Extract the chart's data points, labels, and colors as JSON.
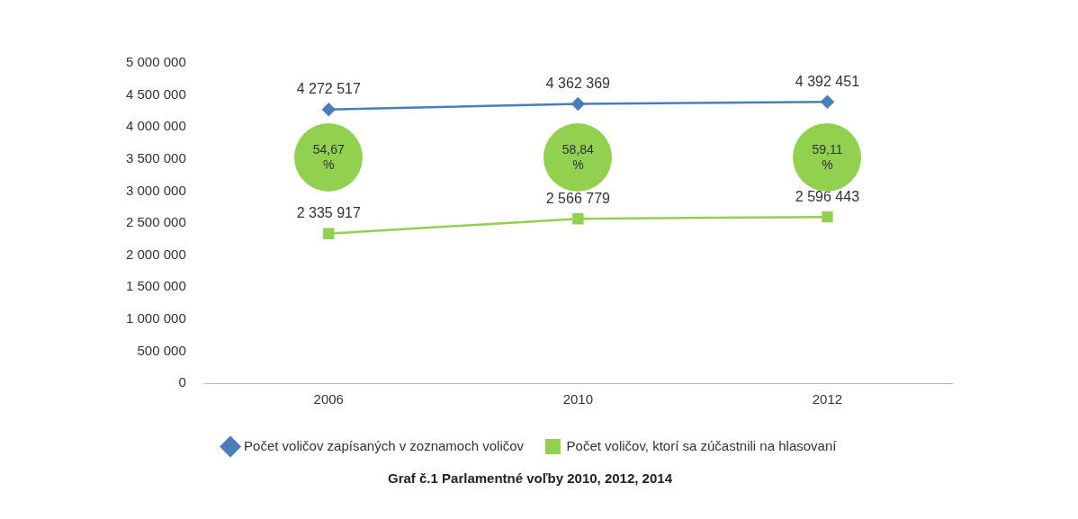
{
  "chart_data": {
    "type": "line",
    "title": "Graf č.1 Parlamentné voľby 2010, 2012, 2014",
    "categories": [
      "2006",
      "2010",
      "2012"
    ],
    "series": [
      {
        "name": "Počet voličov zapísaných v zoznamoch voličov",
        "color": "#4a7ebb",
        "marker": "diamond",
        "values": [
          4272517,
          4362369,
          4392451
        ],
        "value_labels": [
          "4 272 517",
          "4 362 369",
          "4 392 451"
        ]
      },
      {
        "name": "Počet voličov, ktorí sa zúčastnili na hlasovaní",
        "color": "#92d050",
        "marker": "square",
        "values": [
          2335917,
          2566779,
          2596443
        ],
        "value_labels": [
          "2 335 917",
          "2 566 779",
          "2 596 443"
        ]
      }
    ],
    "ylim": [
      0,
      5000000
    ],
    "yticks": [
      {
        "value": 0,
        "label": "0"
      },
      {
        "value": 500000,
        "label": "500 000"
      },
      {
        "value": 1000000,
        "label": "1 000 000"
      },
      {
        "value": 1500000,
        "label": "1 500 000"
      },
      {
        "value": 2000000,
        "label": "2 000 000"
      },
      {
        "value": 2500000,
        "label": "2 500 000"
      },
      {
        "value": 3000000,
        "label": "3 000 000"
      },
      {
        "value": 3500000,
        "label": "3 500 000"
      },
      {
        "value": 4000000,
        "label": "4 000 000"
      },
      {
        "value": 4500000,
        "label": "4 500 000"
      },
      {
        "value": 5000000,
        "label": "5 000 000"
      }
    ],
    "annotations": [
      "54,67 %",
      "58,84 %",
      "59,11 %"
    ],
    "grid": false,
    "legend": "bottom"
  }
}
